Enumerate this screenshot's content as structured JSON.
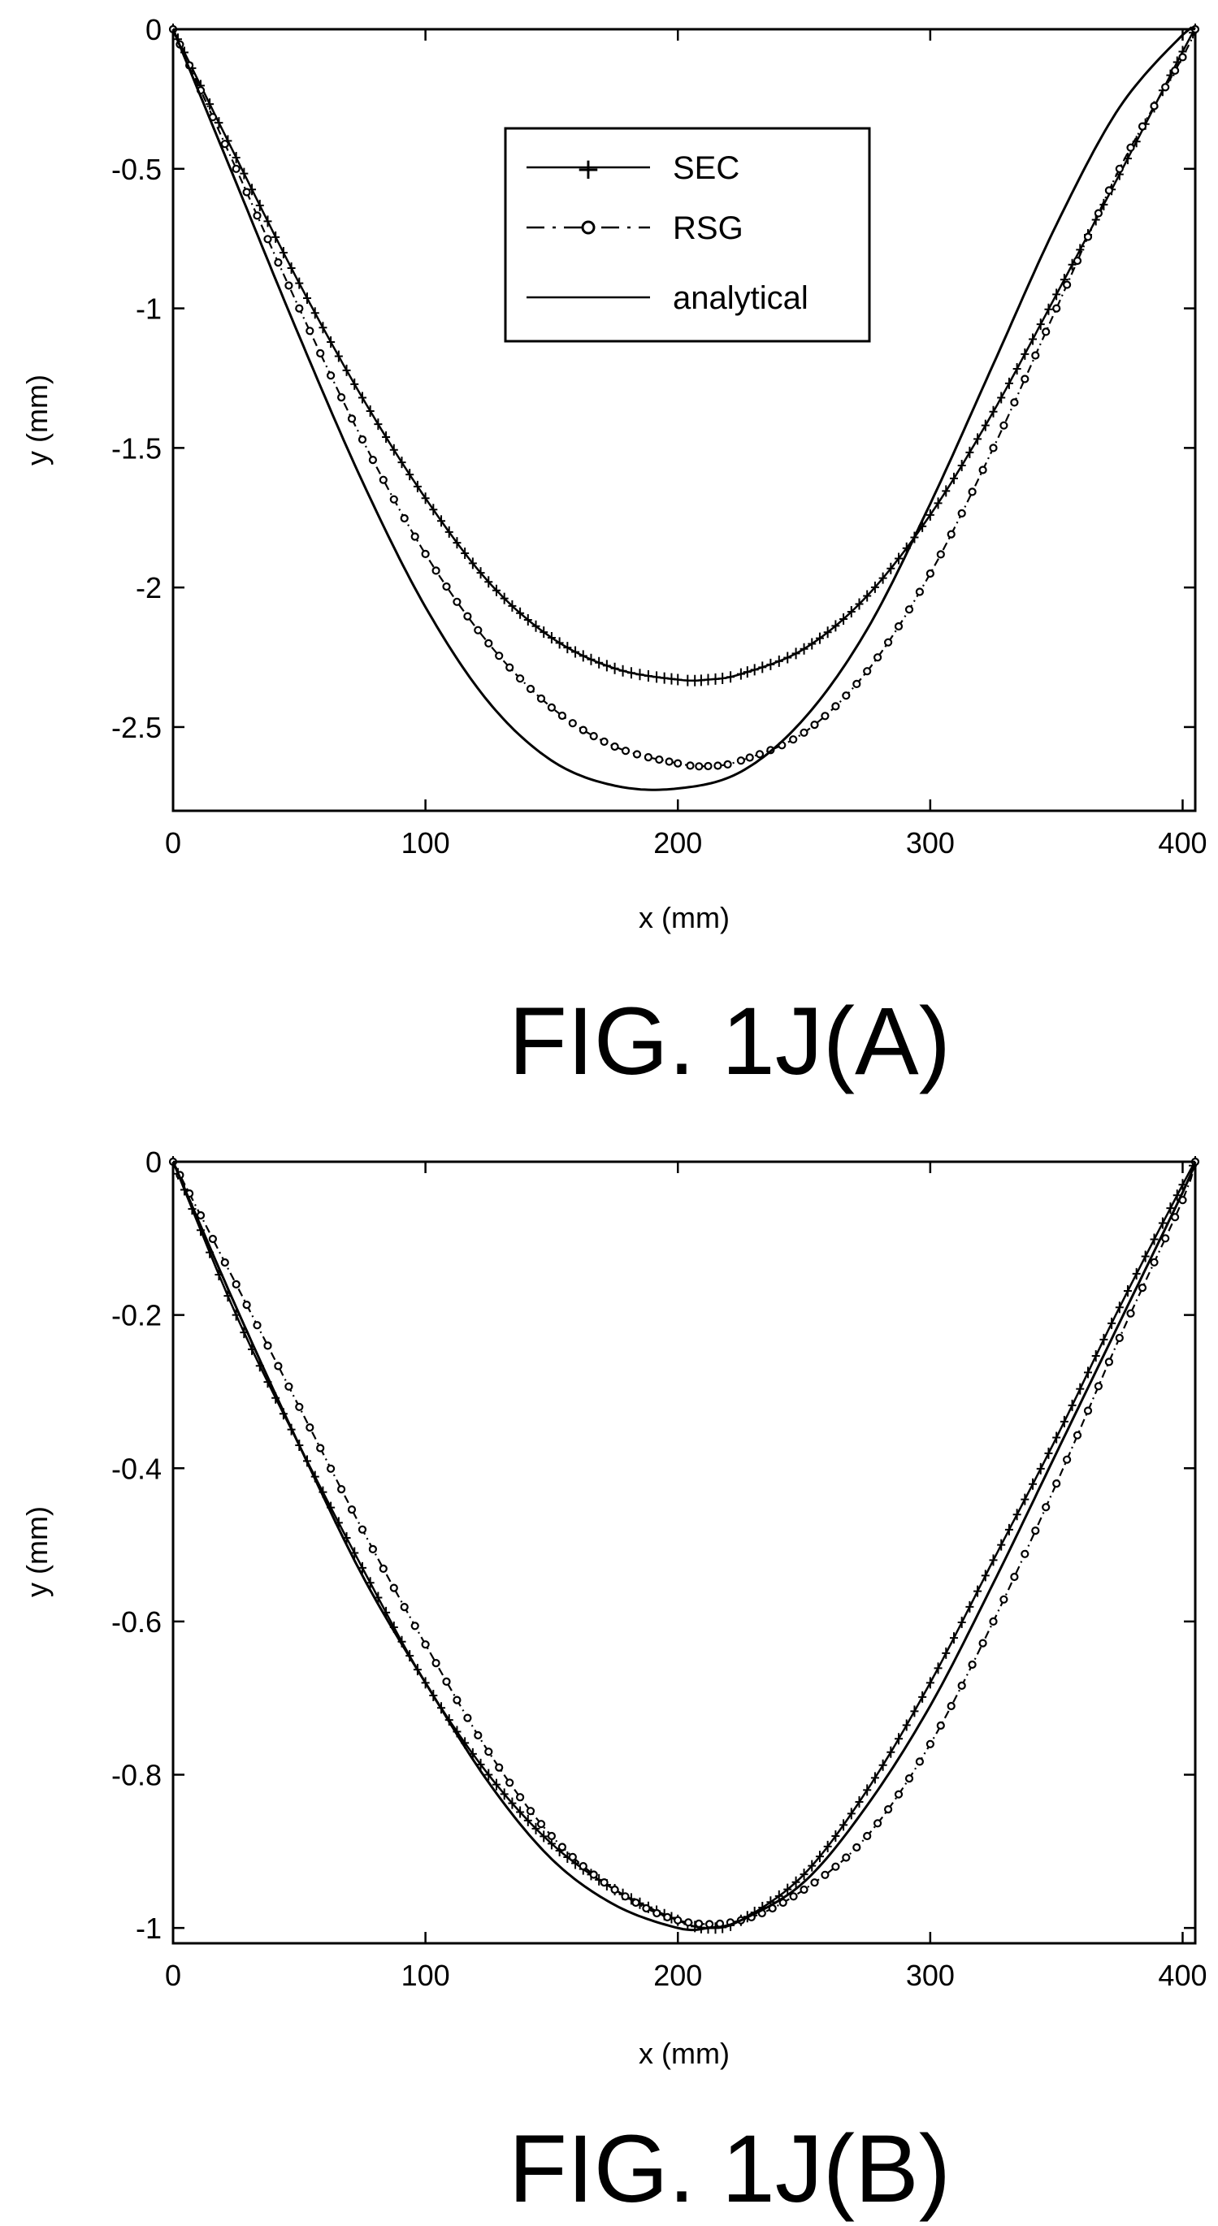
{
  "chart_data": [
    {
      "type": "line",
      "caption": "FIG. 1J(A)",
      "xlabel": "x (mm)",
      "ylabel": "y (mm)",
      "xlim": [
        0,
        405
      ],
      "ylim": [
        -2.8,
        0
      ],
      "xticks": [
        0,
        100,
        200,
        300,
        400
      ],
      "xtick_labels": [
        "0",
        "100",
        "200",
        "300",
        "400"
      ],
      "yticks": [
        0,
        -0.5,
        -1,
        -1.5,
        -2,
        -2.5
      ],
      "ytick_labels": [
        "0",
        "-0.5",
        "-1",
        "-1.5",
        "-2",
        "-2.5"
      ],
      "grid": false,
      "legend_position": "top-center",
      "series": [
        {
          "name": "SEC",
          "style": "solid-plus",
          "x": [
            0,
            25,
            50,
            75,
            100,
            125,
            150,
            175,
            200,
            212,
            225,
            250,
            275,
            300,
            325,
            350,
            375,
            400,
            405
          ],
          "y": [
            0,
            -0.46,
            -0.91,
            -1.32,
            -1.68,
            -1.98,
            -2.18,
            -2.29,
            -2.33,
            -2.33,
            -2.31,
            -2.22,
            -2.03,
            -1.74,
            -1.37,
            -0.95,
            -0.52,
            -0.08,
            0
          ]
        },
        {
          "name": "RSG",
          "style": "dashdot-circle",
          "x": [
            0,
            25,
            50,
            75,
            100,
            125,
            150,
            175,
            200,
            212,
            225,
            250,
            275,
            300,
            325,
            350,
            375,
            400,
            405
          ],
          "y": [
            0,
            -0.5,
            -1.0,
            -1.47,
            -1.88,
            -2.2,
            -2.43,
            -2.57,
            -2.63,
            -2.64,
            -2.62,
            -2.52,
            -2.3,
            -1.95,
            -1.5,
            -1.0,
            -0.5,
            -0.1,
            0
          ]
        },
        {
          "name": "analytical",
          "style": "solid",
          "x": [
            0,
            25,
            50,
            75,
            100,
            125,
            150,
            175,
            200,
            225,
            250,
            275,
            300,
            325,
            350,
            375,
            400,
            405
          ],
          "y": [
            0,
            -0.55,
            -1.1,
            -1.62,
            -2.07,
            -2.41,
            -2.62,
            -2.71,
            -2.72,
            -2.66,
            -2.47,
            -2.15,
            -1.7,
            -1.2,
            -0.7,
            -0.28,
            -0.02,
            0
          ]
        }
      ]
    },
    {
      "type": "line",
      "caption": "FIG. 1J(B)",
      "xlabel": "x (mm)",
      "ylabel": "y (mm)",
      "xlim": [
        0,
        405
      ],
      "ylim": [
        -1.02,
        0
      ],
      "xticks": [
        0,
        100,
        200,
        300,
        400
      ],
      "xtick_labels": [
        "0",
        "100",
        "200",
        "300",
        "400"
      ],
      "yticks": [
        0,
        -0.2,
        -0.4,
        -0.6,
        -0.8,
        -1
      ],
      "ytick_labels": [
        "0",
        "-0.2",
        "-0.4",
        "-0.6",
        "-0.8",
        "-1"
      ],
      "grid": false,
      "series": [
        {
          "name": "SEC",
          "style": "solid-plus",
          "x": [
            0,
            25,
            50,
            75,
            100,
            125,
            150,
            175,
            200,
            212,
            225,
            250,
            275,
            300,
            325,
            350,
            375,
            400,
            405
          ],
          "y": [
            0,
            -0.2,
            -0.37,
            -0.53,
            -0.68,
            -0.8,
            -0.89,
            -0.95,
            -0.99,
            -1.0,
            -0.99,
            -0.93,
            -0.82,
            -0.68,
            -0.52,
            -0.36,
            -0.19,
            -0.03,
            0
          ]
        },
        {
          "name": "RSG",
          "style": "dashdot-circle",
          "x": [
            0,
            25,
            50,
            75,
            100,
            125,
            150,
            175,
            200,
            225,
            250,
            275,
            300,
            325,
            350,
            375,
            400,
            405
          ],
          "y": [
            0,
            -0.16,
            -0.32,
            -0.48,
            -0.63,
            -0.77,
            -0.88,
            -0.95,
            -0.99,
            -0.99,
            -0.95,
            -0.88,
            -0.76,
            -0.6,
            -0.42,
            -0.23,
            -0.05,
            0
          ]
        },
        {
          "name": "analytical",
          "style": "solid",
          "x": [
            0,
            25,
            50,
            75,
            100,
            125,
            150,
            175,
            200,
            212,
            225,
            250,
            275,
            300,
            325,
            350,
            375,
            400,
            405
          ],
          "y": [
            0,
            -0.19,
            -0.37,
            -0.54,
            -0.68,
            -0.81,
            -0.91,
            -0.97,
            -1.0,
            -1.0,
            -0.99,
            -0.94,
            -0.84,
            -0.71,
            -0.55,
            -0.38,
            -0.21,
            -0.04,
            0
          ]
        }
      ]
    }
  ]
}
